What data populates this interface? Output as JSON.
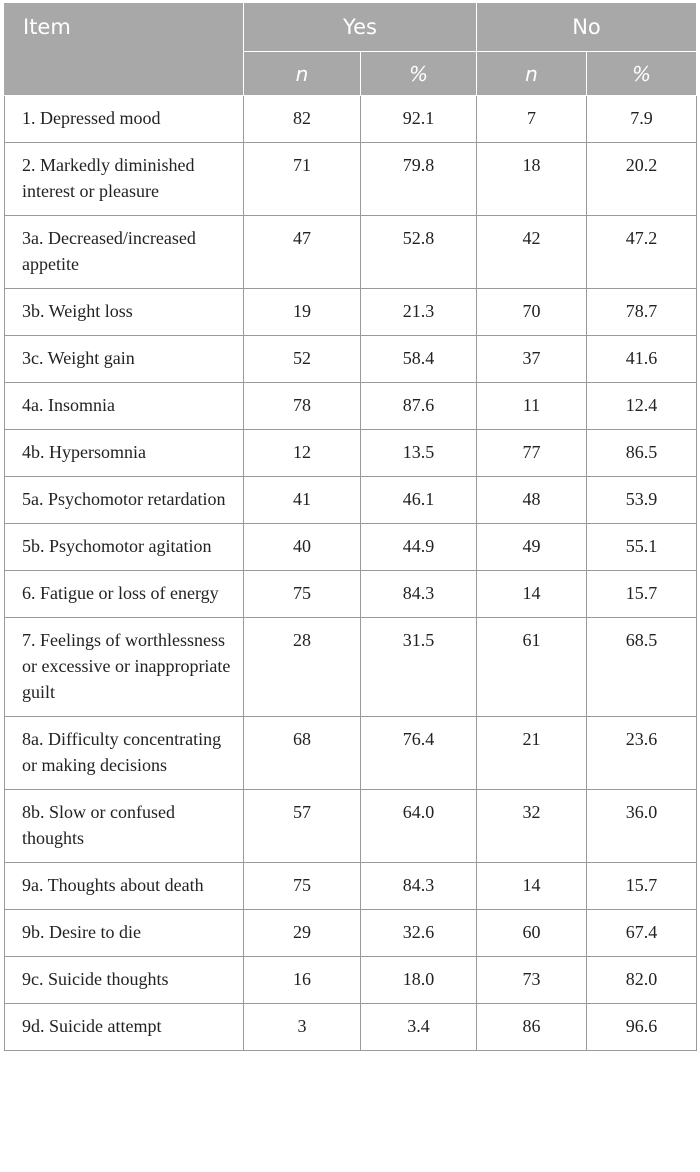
{
  "table": {
    "header": {
      "item": "Item",
      "yes": "Yes",
      "no": "No",
      "n": "n",
      "pct": "%"
    },
    "rows": [
      {
        "item": "1. Depressed mood",
        "yes_n": "82",
        "yes_pct": "92.1",
        "no_n": "7",
        "no_pct": "7.9"
      },
      {
        "item": "2. Markedly diminished interest or pleasure",
        "yes_n": "71",
        "yes_pct": "79.8",
        "no_n": "18",
        "no_pct": "20.2"
      },
      {
        "item": "3a. Decreased/increased appetite",
        "yes_n": "47",
        "yes_pct": "52.8",
        "no_n": "42",
        "no_pct": "47.2"
      },
      {
        "item": "3b. Weight loss",
        "yes_n": "19",
        "yes_pct": "21.3",
        "no_n": "70",
        "no_pct": "78.7"
      },
      {
        "item": "3c. Weight gain",
        "yes_n": "52",
        "yes_pct": "58.4",
        "no_n": "37",
        "no_pct": "41.6"
      },
      {
        "item": "4a. Insomnia",
        "yes_n": "78",
        "yes_pct": "87.6",
        "no_n": "11",
        "no_pct": "12.4"
      },
      {
        "item": "4b. Hypersomnia",
        "yes_n": "12",
        "yes_pct": "13.5",
        "no_n": "77",
        "no_pct": "86.5"
      },
      {
        "item": "5a. Psychomotor retardation",
        "yes_n": "41",
        "yes_pct": "46.1",
        "no_n": "48",
        "no_pct": "53.9"
      },
      {
        "item": "5b. Psychomotor agitation",
        "yes_n": "40",
        "yes_pct": "44.9",
        "no_n": "49",
        "no_pct": "55.1"
      },
      {
        "item": "6. Fatigue or loss of energy",
        "yes_n": "75",
        "yes_pct": "84.3",
        "no_n": "14",
        "no_pct": "15.7"
      },
      {
        "item": "7. Feelings of worthlessness or excessive or inappropriate guilt",
        "yes_n": "28",
        "yes_pct": "31.5",
        "no_n": "61",
        "no_pct": "68.5"
      },
      {
        "item": "8a. Difficulty concentrating or making decisions",
        "yes_n": "68",
        "yes_pct": "76.4",
        "no_n": "21",
        "no_pct": "23.6"
      },
      {
        "item": "8b. Slow or confused thoughts",
        "yes_n": "57",
        "yes_pct": "64.0",
        "no_n": "32",
        "no_pct": "36.0"
      },
      {
        "item": "9a. Thoughts about death",
        "yes_n": "75",
        "yes_pct": "84.3",
        "no_n": "14",
        "no_pct": "15.7"
      },
      {
        "item": "9b. Desire to die",
        "yes_n": "29",
        "yes_pct": "32.6",
        "no_n": "60",
        "no_pct": "67.4"
      },
      {
        "item": "9c. Suicide thoughts",
        "yes_n": "16",
        "yes_pct": "18.0",
        "no_n": "73",
        "no_pct": "82.0"
      },
      {
        "item": "9d. Suicide attempt",
        "yes_n": "3",
        "yes_pct": "3.4",
        "no_n": "86",
        "no_pct": "96.6"
      }
    ]
  }
}
